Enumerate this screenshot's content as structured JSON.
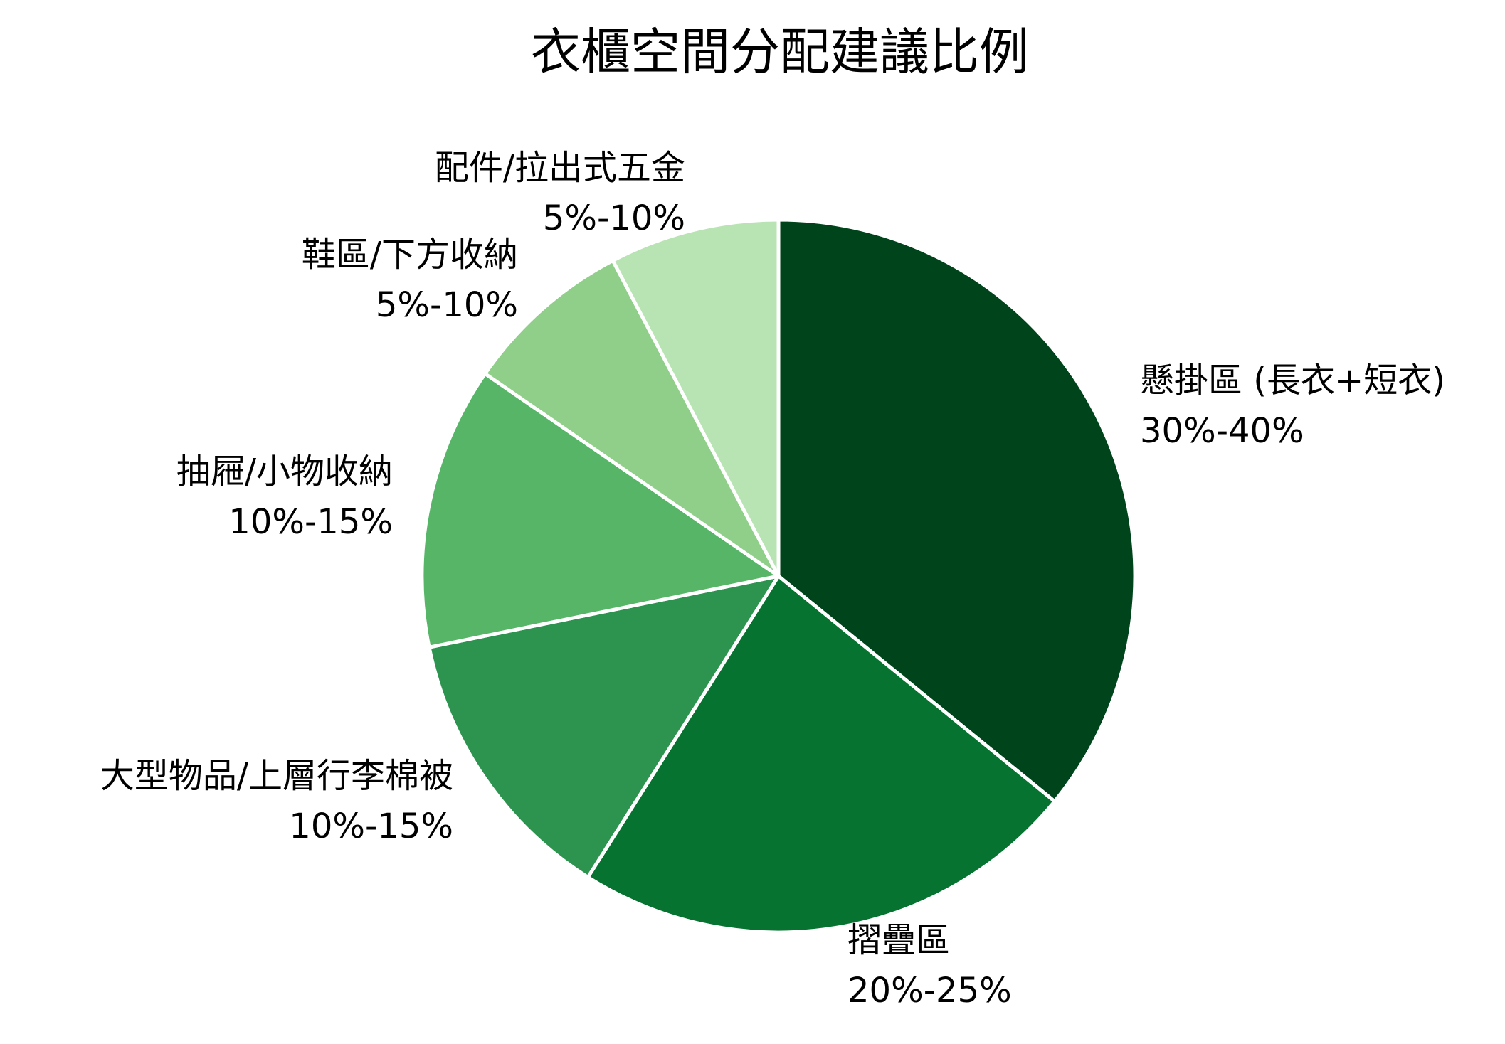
{
  "chart_data": {
    "type": "pie",
    "title": "衣櫃空間分配建議比例",
    "categories": [
      "懸掛區 (長衣+短衣)",
      "摺疊區",
      "大型物品/上層行李棉被",
      "抽屜/小物收納",
      "鞋區/下方收納",
      "配件/拉出式五金"
    ],
    "range_labels": [
      "30%-40%",
      "20%-25%",
      "10%-15%",
      "10%-15%",
      "5%-10%",
      "5%-10%"
    ],
    "values": [
      35,
      22.5,
      12.5,
      12.5,
      7.5,
      7.5
    ],
    "colors": [
      "#00441b",
      "#077331",
      "#2d9450",
      "#56b567",
      "#8fcf89",
      "#b8e3b3"
    ],
    "start_angle": "top (12 o'clock)",
    "direction": "clockwise",
    "legend": "none (labels placed outside wedges)"
  },
  "title": "衣櫃空間分配建議比例",
  "labels": [
    {
      "name": "懸掛區 (長衣+短衣)",
      "range": "30%-40%"
    },
    {
      "name": "摺疊區",
      "range": "20%-25%"
    },
    {
      "name": "大型物品/上層行李棉被",
      "range": "10%-15%"
    },
    {
      "name": "抽屜/小物收納",
      "range": "10%-15%"
    },
    {
      "name": "鞋區/下方收納",
      "range": "5%-10%"
    },
    {
      "name": "配件/拉出式五金",
      "range": "5%-10%"
    }
  ]
}
